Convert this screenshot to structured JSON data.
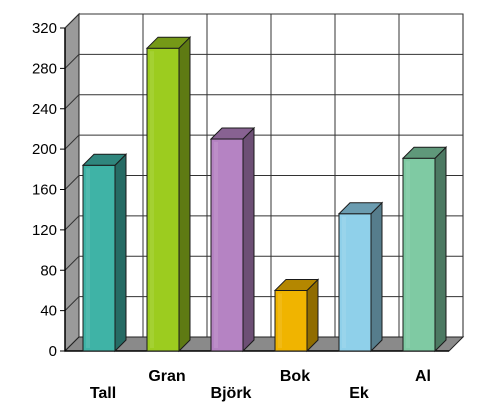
{
  "chart_data": {
    "type": "bar",
    "categories": [
      "Tall",
      "Gran",
      "Björk",
      "Bok",
      "Ek",
      "Al"
    ],
    "values": [
      184,
      300,
      210,
      60,
      136,
      191
    ],
    "ylim": [
      0,
      320
    ],
    "yticks": [
      "0",
      "40",
      "80",
      "120",
      "160",
      "200",
      "240",
      "280",
      "320"
    ],
    "grid": true,
    "style": "3d",
    "colors": [
      "#3fb3a6",
      "#9ccc1f",
      "#b583c3",
      "#f0b400",
      "#8fd0ea",
      "#7fcaa3"
    ]
  }
}
